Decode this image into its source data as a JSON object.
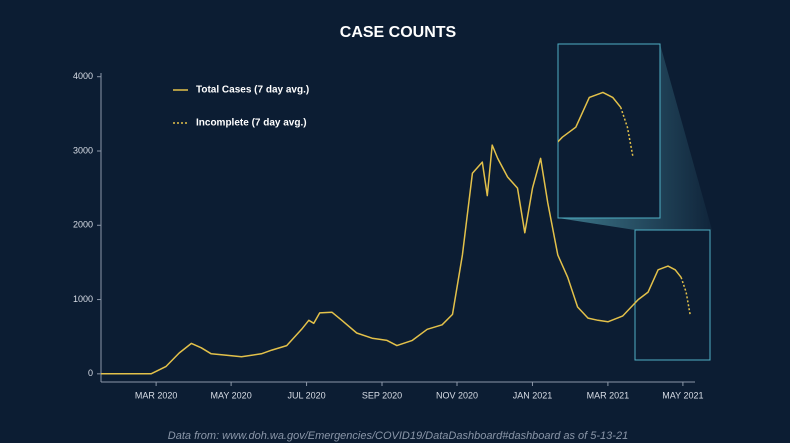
{
  "chart_data": {
    "type": "line",
    "title": "CASE COUNTS",
    "x": [
      2020.045,
      2020.156,
      2020.189,
      2020.218,
      2020.245,
      2020.267,
      2020.289,
      2020.323,
      2020.356,
      2020.4,
      2020.423,
      2020.456,
      2020.489,
      2020.505,
      2020.516,
      2020.529,
      2020.556,
      2020.578,
      2020.611,
      2020.645,
      2020.678,
      2020.7,
      2020.734,
      2020.767,
      2020.8,
      2020.823,
      2020.845,
      2020.867,
      2020.889,
      2020.9,
      2020.911,
      2020.923,
      2020.945,
      2020.967,
      2020.983,
      2021.0,
      2021.018,
      2021.034,
      2021.056,
      2021.078,
      2021.1,
      2021.123,
      2021.145,
      2021.167,
      2021.2,
      2021.234,
      2021.256,
      2021.278,
      2021.3,
      2021.316,
      2021.329,
      2021.34,
      2021.349
    ],
    "series": [
      {
        "name": "Total Cases (7 day avg.)",
        "color": "#e3c14a",
        "dashed": false,
        "values": [
          0,
          0,
          100,
          280,
          410,
          350,
          270,
          250,
          230,
          270,
          320,
          380,
          600,
          720,
          680,
          820,
          830,
          720,
          550,
          480,
          450,
          380,
          450,
          600,
          660,
          800,
          1600,
          2700,
          2850,
          2400,
          3080,
          2900,
          2650,
          2500,
          1900,
          2500,
          2900,
          2300,
          1600,
          1300,
          900,
          750,
          720,
          700,
          780,
          1000,
          1100,
          1400,
          1450,
          1400,
          1300,
          null,
          null
        ]
      },
      {
        "name": "Incomplete (7 day avg.)",
        "color": "#e3c14a",
        "dashed": true,
        "values": [
          null,
          null,
          null,
          null,
          null,
          null,
          null,
          null,
          null,
          null,
          null,
          null,
          null,
          null,
          null,
          null,
          null,
          null,
          null,
          null,
          null,
          null,
          null,
          null,
          null,
          null,
          null,
          null,
          null,
          null,
          null,
          null,
          null,
          null,
          null,
          null,
          null,
          null,
          null,
          null,
          null,
          null,
          null,
          null,
          null,
          null,
          null,
          null,
          null,
          null,
          1300,
          1100,
          800
        ]
      }
    ],
    "xlim": [
      2020.045,
      2021.362
    ],
    "xticks": [
      {
        "value": 2020.167,
        "label": "MAR 2020"
      },
      {
        "value": 2020.333,
        "label": "MAY 2020"
      },
      {
        "value": 2020.5,
        "label": "JUL 2020"
      },
      {
        "value": 2020.667,
        "label": "SEP 2020"
      },
      {
        "value": 2020.833,
        "label": "NOV 2020"
      },
      {
        "value": 2021.0,
        "label": "JAN 2021"
      },
      {
        "value": 2021.167,
        "label": "MAR 2021"
      },
      {
        "value": 2021.333,
        "label": "MAY 2021"
      }
    ],
    "ylim": [
      -110,
      4050
    ],
    "yticks": [
      0,
      1000,
      2000,
      3000,
      4000
    ],
    "note": "Data from: www.doh.wa.gov/Emergencies/COVID19/DataDashboard#dashboard as of 5-13-21"
  }
}
